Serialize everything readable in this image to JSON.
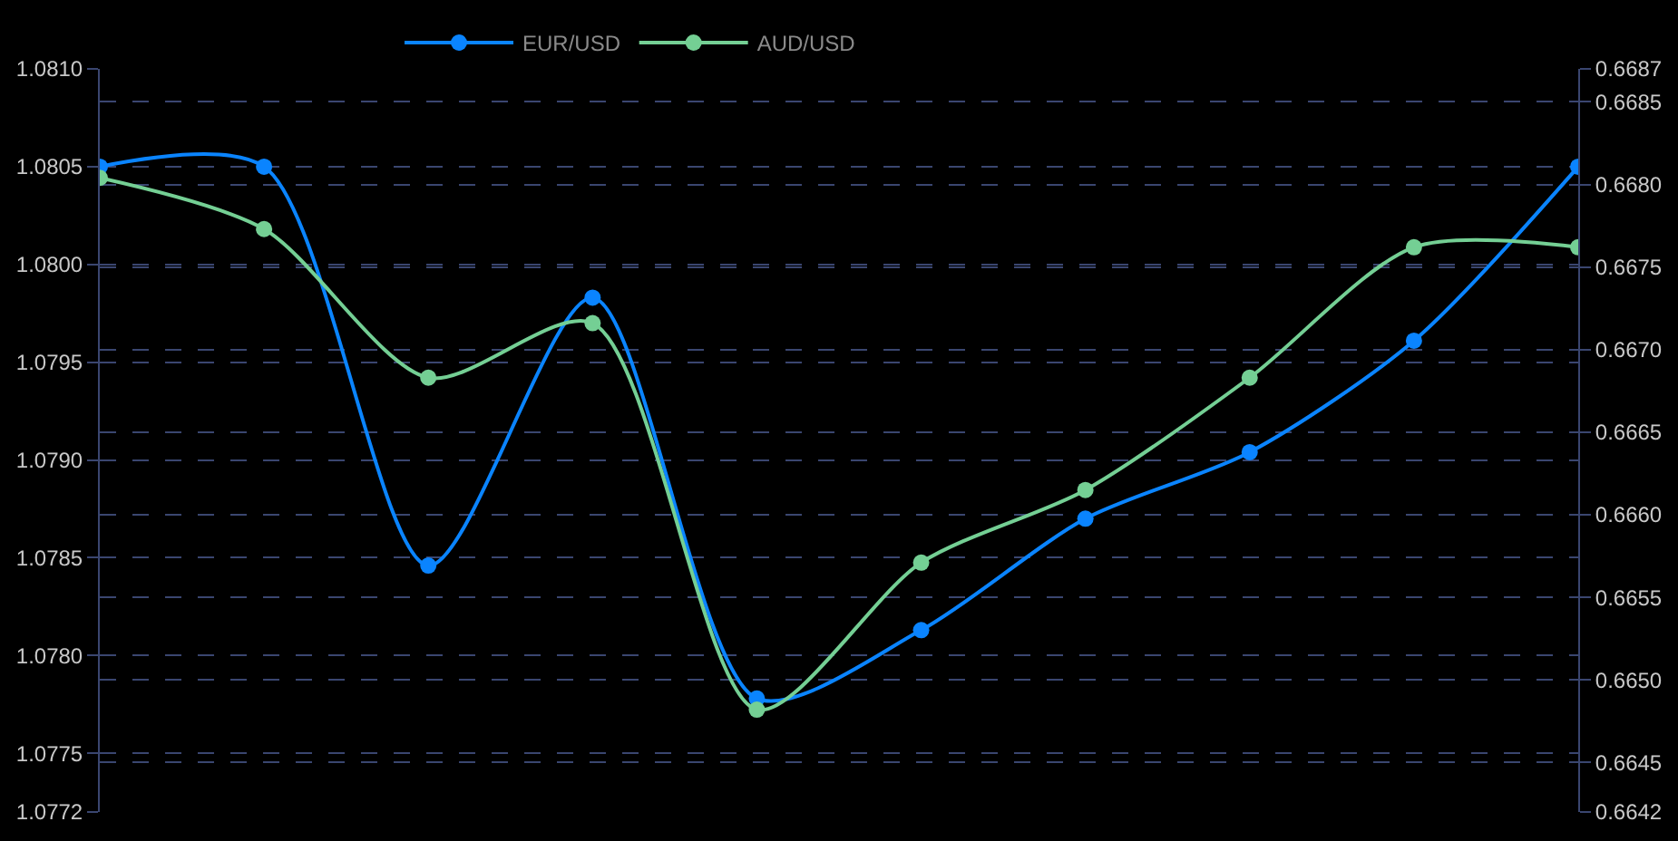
{
  "chart_data": {
    "type": "line",
    "categories": [
      null,
      null,
      null,
      null,
      null,
      null,
      null,
      null,
      null,
      null
    ],
    "series": [
      {
        "name": "EUR/USD",
        "color": "#0a84ff",
        "values": [
          1.0805,
          1.0805,
          1.07846,
          1.07983,
          1.07778,
          1.07813,
          1.0787,
          1.07904,
          1.07961,
          1.0805
        ]
      },
      {
        "name": "AUD/USD",
        "color": "#74cf94",
        "axis": "y2",
        "values": [
          0.66804,
          0.66773,
          0.66683,
          0.66716,
          0.66482,
          0.66571,
          0.66615,
          0.66683,
          0.66762,
          0.66762
        ]
      }
    ],
    "ylim": [
      1.0772,
      1.081
    ],
    "yticks": [
      {
        "value": 1.0772,
        "label": "1.0772"
      },
      1.0775,
      {
        "value": 1.078,
        "label": "1.0780"
      },
      1.0785,
      {
        "value": 1.079,
        "label": "1.0790"
      },
      1.0795,
      {
        "value": 1.08,
        "label": "1.0800"
      },
      1.0805,
      {
        "value": 1.081,
        "label": "1.0810"
      }
    ],
    "y2lim": [
      0.6642,
      0.6687
    ],
    "y2ticks": [
      0.6642,
      0.6645,
      {
        "value": 0.665,
        "label": "0.6650"
      },
      0.6655,
      {
        "value": 0.666,
        "label": "0.6660"
      },
      0.6665,
      {
        "value": 0.667,
        "label": "0.6670"
      },
      0.6675,
      {
        "value": 0.668,
        "label": "0.6680"
      },
      0.6685,
      0.6687
    ],
    "grid": "y",
    "legend": "top",
    "marker": "circle",
    "line_style": "solid",
    "tick_labels": "y"
  }
}
